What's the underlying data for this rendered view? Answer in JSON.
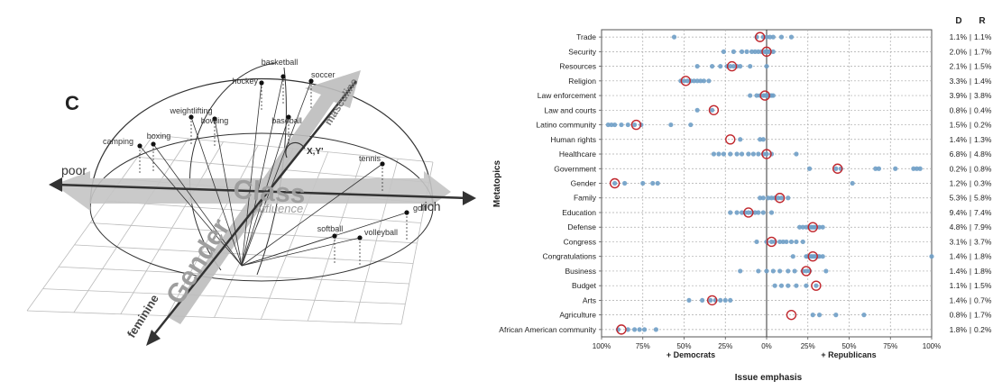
{
  "left_panel": {
    "panel_letter": "C",
    "axis_labels": {
      "poor": "poor",
      "rich": "rich",
      "feminine": "feminine",
      "masculine": "masculine",
      "class": "Class",
      "affluence": "Affluence",
      "gender": "Gender",
      "angle": "X,Y'"
    },
    "sports": [
      "basketball",
      "hockey",
      "soccer",
      "weightlifting",
      "bowling",
      "baseball",
      "camping",
      "boxing",
      "tennis",
      "golf",
      "softball",
      "volleyball"
    ]
  },
  "chart_data": {
    "type": "scatter",
    "title": "",
    "ylabel": "Metatopics",
    "xlabel": "Issue emphasis",
    "xlim": [
      -100,
      100
    ],
    "x_ticks": [
      "100%",
      "75%",
      "50%",
      "25%",
      "0%",
      "25%",
      "50%",
      "75%",
      "100%"
    ],
    "x_side_labels": {
      "left": "+ Democrats",
      "right": "+ Republicans"
    },
    "column_headers": {
      "d": "D",
      "r": "R"
    },
    "grid": true,
    "colors": {
      "dot": "#6f9fc6",
      "circle": "#c0272d"
    },
    "topics": [
      {
        "name": "Trade",
        "d": "1.1%",
        "r": "1.1%",
        "center": -4,
        "points": [
          -56,
          -6,
          -2,
          0,
          2,
          4,
          9,
          15
        ]
      },
      {
        "name": "Security",
        "d": "2.0%",
        "r": "1.7%",
        "center": 0,
        "points": [
          -26,
          -20,
          -15,
          -12,
          -9,
          -7,
          -5,
          -3,
          -1,
          0,
          1,
          2,
          4
        ]
      },
      {
        "name": "Resources",
        "d": "2.1%",
        "r": "1.5%",
        "center": -21,
        "points": [
          -42,
          -33,
          -28,
          -24,
          -22,
          -20,
          -18,
          -16,
          -10,
          0
        ]
      },
      {
        "name": "Religion",
        "d": "3.3%",
        "r": "1.4%",
        "center": -49,
        "points": [
          -52,
          -50,
          -48,
          -46,
          -44,
          -42,
          -40,
          -38,
          -35
        ]
      },
      {
        "name": "Law enforcement",
        "d": "3.9%",
        "r": "3.8%",
        "center": -1,
        "points": [
          -10,
          -6,
          -4,
          -2,
          -1,
          0,
          1,
          2,
          3,
          4
        ]
      },
      {
        "name": "Law and courts",
        "d": "0.8%",
        "r": "0.4%",
        "center": -32,
        "points": [
          -42,
          -33
        ]
      },
      {
        "name": "Latino community",
        "d": "1.5%",
        "r": "0.2%",
        "center": -79,
        "points": [
          -96,
          -94,
          -92,
          -88,
          -84,
          -80,
          -76,
          -58,
          -46
        ]
      },
      {
        "name": "Human rights",
        "d": "1.4%",
        "r": "1.3%",
        "center": -22,
        "points": [
          -16,
          -4,
          -2
        ]
      },
      {
        "name": "Healthcare",
        "d": "6.8%",
        "r": "4.8%",
        "center": 0,
        "points": [
          -32,
          -29,
          -26,
          -22,
          -18,
          -15,
          -11,
          -8,
          -5,
          -2,
          0,
          3,
          18
        ]
      },
      {
        "name": "Government",
        "d": "0.2%",
        "r": "0.8%",
        "center": 43,
        "points": [
          26,
          42,
          45,
          66,
          68,
          78,
          89,
          91,
          93
        ]
      },
      {
        "name": "Gender",
        "d": "1.2%",
        "r": "0.3%",
        "center": -92,
        "points": [
          -92,
          -86,
          -75,
          -69,
          -66,
          52
        ]
      },
      {
        "name": "Family",
        "d": "5.3%",
        "r": "5.8%",
        "center": 8,
        "points": [
          -4,
          -2,
          1,
          3,
          5,
          7,
          9,
          13
        ]
      },
      {
        "name": "Education",
        "d": "9.4%",
        "r": "7.4%",
        "center": -11,
        "points": [
          -22,
          -18,
          -15,
          -13,
          -11,
          -9,
          -7,
          -5,
          -2,
          3
        ]
      },
      {
        "name": "Defense",
        "d": "4.8%",
        "r": "7.9%",
        "center": 28,
        "points": [
          20,
          22,
          24,
          26,
          27,
          28,
          29,
          30,
          32,
          34
        ]
      },
      {
        "name": "Congress",
        "d": "3.1%",
        "r": "3.7%",
        "center": 3,
        "points": [
          -6,
          0,
          3,
          5,
          8,
          10,
          12,
          15,
          18,
          22
        ]
      },
      {
        "name": "Congratulations",
        "d": "1.4%",
        "r": "1.8%",
        "center": 28,
        "points": [
          16,
          24,
          25,
          26,
          27,
          28,
          29,
          30,
          31,
          32,
          34,
          100
        ]
      },
      {
        "name": "Business",
        "d": "1.4%",
        "r": "1.8%",
        "center": 24,
        "points": [
          -16,
          -5,
          0,
          4,
          8,
          13,
          17,
          22,
          24,
          26,
          36
        ]
      },
      {
        "name": "Budget",
        "d": "1.1%",
        "r": "1.5%",
        "center": 30,
        "points": [
          5,
          9,
          13,
          18,
          24,
          30
        ]
      },
      {
        "name": "Arts",
        "d": "1.4%",
        "r": "0.7%",
        "center": -33,
        "points": [
          -47,
          -39,
          -34,
          -31,
          -28,
          -25,
          -22
        ]
      },
      {
        "name": "Agriculture",
        "d": "0.8%",
        "r": "1.7%",
        "center": 15,
        "points": [
          28,
          32,
          42,
          59
        ]
      },
      {
        "name": "African American community",
        "d": "1.8%",
        "r": "0.2%",
        "center": -88,
        "points": [
          -90,
          -84,
          -80,
          -77,
          -74,
          -67
        ]
      }
    ]
  }
}
